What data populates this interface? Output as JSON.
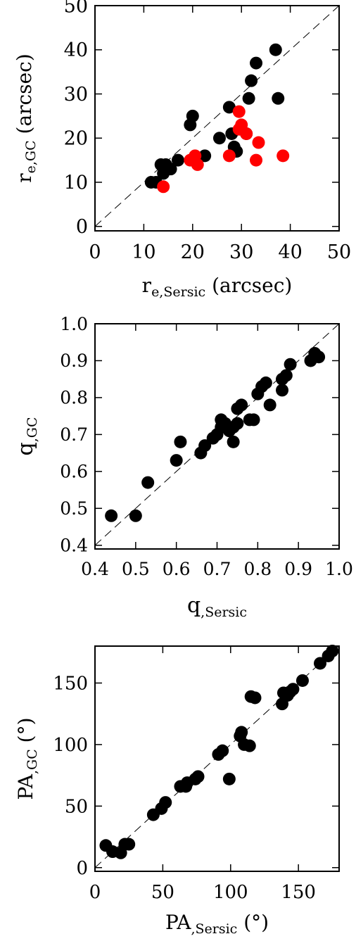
{
  "chart_data": [
    {
      "type": "scatter",
      "xlabel_main": "r",
      "xlabel_sub": "e,Sersic",
      "xlabel_unit": "(arcsec)",
      "ylabel_main": "r",
      "ylabel_sub": "e,GC",
      "ylabel_unit": "(arcsec)",
      "xlim": [
        0,
        50
      ],
      "ylim": [
        -1,
        50
      ],
      "xticks": [
        0,
        10,
        20,
        30,
        40,
        50
      ],
      "yticks": [
        0,
        10,
        20,
        30,
        40,
        50
      ],
      "xtick_labels": [
        "0",
        "10",
        "20",
        "30",
        "40",
        "50"
      ],
      "ytick_labels": [
        "0",
        "10",
        "20",
        "30",
        "40",
        "50"
      ],
      "reference_line": "y = x (dashed)",
      "series": [
        {
          "color": "#000000",
          "points": [
            [
              11.5,
              10
            ],
            [
              12.5,
              10
            ],
            [
              13.5,
              14
            ],
            [
              14,
              12
            ],
            [
              14.5,
              14
            ],
            [
              15.5,
              13
            ],
            [
              17,
              15
            ],
            [
              19.5,
              23
            ],
            [
              20,
              25
            ],
            [
              20.5,
              15
            ],
            [
              22.5,
              16
            ],
            [
              25.5,
              20
            ],
            [
              27.5,
              27
            ],
            [
              28,
              21
            ],
            [
              28.5,
              18
            ],
            [
              29,
              17
            ],
            [
              31,
              21
            ],
            [
              31.5,
              29
            ],
            [
              32,
              33
            ],
            [
              33,
              37
            ],
            [
              37,
              40
            ],
            [
              37.5,
              29
            ]
          ]
        },
        {
          "color": "#ff0000",
          "points": [
            [
              14,
              9
            ],
            [
              19.5,
              15
            ],
            [
              20.5,
              16
            ],
            [
              21,
              14
            ],
            [
              27.5,
              16
            ],
            [
              29.5,
              26
            ],
            [
              29.5,
              22
            ],
            [
              30,
              23
            ],
            [
              31,
              21
            ],
            [
              33,
              15
            ],
            [
              33.5,
              19
            ],
            [
              38.5,
              16
            ]
          ]
        }
      ]
    },
    {
      "type": "scatter",
      "xlabel_main": "q",
      "xlabel_sub": ",Sersic",
      "xlabel_unit": "",
      "ylabel_main": "q",
      "ylabel_sub": ",GC",
      "ylabel_unit": "",
      "xlim": [
        0.4,
        1.0
      ],
      "ylim": [
        0.39,
        1.0
      ],
      "xticks": [
        0.4,
        0.5,
        0.6,
        0.7,
        0.8,
        0.9,
        1.0
      ],
      "yticks": [
        0.4,
        0.5,
        0.6,
        0.7,
        0.8,
        0.9,
        1.0
      ],
      "xtick_labels": [
        "0.4",
        "0.5",
        "0.6",
        "0.7",
        "0.8",
        "0.9",
        "1.0"
      ],
      "ytick_labels": [
        "0.4",
        "0.5",
        "0.6",
        "0.7",
        "0.8",
        "0.9",
        "1.0"
      ],
      "reference_line": "y = x (dashed)",
      "series": [
        {
          "color": "#000000",
          "points": [
            [
              0.44,
              0.48
            ],
            [
              0.5,
              0.48
            ],
            [
              0.53,
              0.57
            ],
            [
              0.6,
              0.63
            ],
            [
              0.61,
              0.68
            ],
            [
              0.66,
              0.65
            ],
            [
              0.67,
              0.67
            ],
            [
              0.69,
              0.69
            ],
            [
              0.7,
              0.7
            ],
            [
              0.71,
              0.72
            ],
            [
              0.71,
              0.74
            ],
            [
              0.72,
              0.73
            ],
            [
              0.73,
              0.71
            ],
            [
              0.74,
              0.68
            ],
            [
              0.74,
              0.72
            ],
            [
              0.75,
              0.77
            ],
            [
              0.75,
              0.73
            ],
            [
              0.76,
              0.78
            ],
            [
              0.78,
              0.74
            ],
            [
              0.79,
              0.74
            ],
            [
              0.8,
              0.81
            ],
            [
              0.81,
              0.83
            ],
            [
              0.82,
              0.84
            ],
            [
              0.83,
              0.78
            ],
            [
              0.86,
              0.82
            ],
            [
              0.86,
              0.85
            ],
            [
              0.87,
              0.86
            ],
            [
              0.88,
              0.89
            ],
            [
              0.93,
              0.9
            ],
            [
              0.94,
              0.92
            ],
            [
              0.95,
              0.91
            ]
          ]
        }
      ]
    },
    {
      "type": "scatter",
      "xlabel_main": "PA",
      "xlabel_sub": ",Sersic",
      "xlabel_unit": "(°)",
      "ylabel_main": "PA",
      "ylabel_sub": ",GC",
      "ylabel_unit": "(°)",
      "xlim": [
        0,
        180
      ],
      "ylim": [
        -3,
        180
      ],
      "xticks": [
        0,
        50,
        100,
        150
      ],
      "yticks": [
        0,
        50,
        100,
        150
      ],
      "xtick_labels": [
        "0",
        "50",
        "100",
        "150"
      ],
      "ytick_labels": [
        "0",
        "50",
        "100",
        "150"
      ],
      "reference_line": "y = x (dashed)",
      "series": [
        {
          "color": "#000000",
          "points": [
            [
              8,
              18
            ],
            [
              13,
              13
            ],
            [
              19,
              12
            ],
            [
              22,
              19
            ],
            [
              25,
              19
            ],
            [
              43,
              43
            ],
            [
              49,
              48
            ],
            [
              52,
              53
            ],
            [
              63,
              66
            ],
            [
              67,
              66
            ],
            [
              68,
              69
            ],
            [
              74,
              72
            ],
            [
              76,
              74
            ],
            [
              91,
              92
            ],
            [
              94,
              95
            ],
            [
              99,
              72
            ],
            [
              107,
              107
            ],
            [
              108,
              110
            ],
            [
              110,
              100
            ],
            [
              114,
              99
            ],
            [
              115,
              139
            ],
            [
              118,
              138
            ],
            [
              138,
              133
            ],
            [
              139,
              142
            ],
            [
              142,
              140
            ],
            [
              144,
              143
            ],
            [
              146,
              145
            ],
            [
              153,
              152
            ],
            [
              166,
              166
            ],
            [
              172,
              172
            ],
            [
              175,
              176
            ]
          ]
        }
      ]
    }
  ]
}
